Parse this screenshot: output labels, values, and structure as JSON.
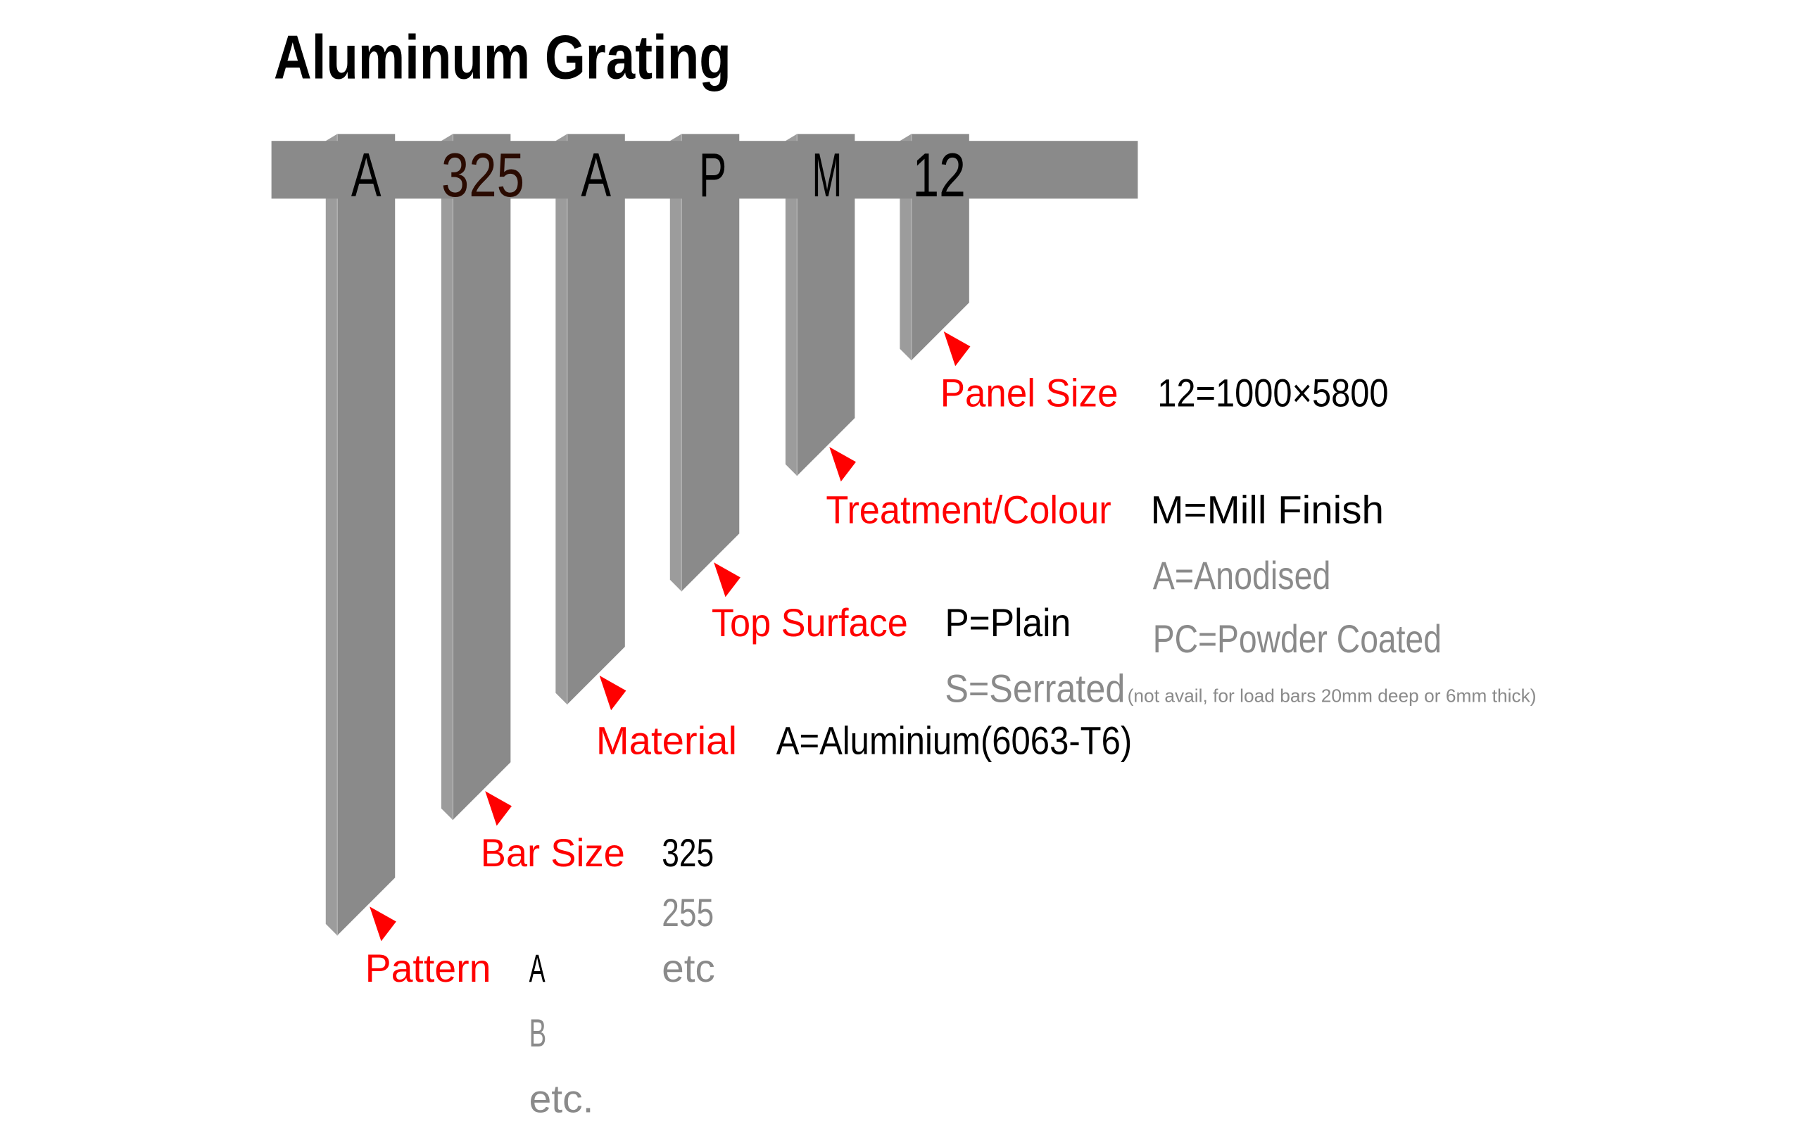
{
  "title": "Aluminum Grating",
  "colors": {
    "bar": "#8a8a8a",
    "bar_edge": "#9c9c9c",
    "label": "#ff0000",
    "value": "#000000",
    "alternative": "#8a8a8a",
    "code_size": "#2a0a00"
  },
  "code": [
    "A",
    "325",
    "A",
    "P",
    "M",
    "12"
  ],
  "fields": {
    "panel_size": {
      "label": "Panel Size",
      "values": [
        "12=1000×5800"
      ]
    },
    "treatment": {
      "label": "Treatment/Colour",
      "values": [
        "M=Mill Finish",
        "A=Anodised",
        "PC=Powder Coated"
      ]
    },
    "top_surface": {
      "label": "Top Surface",
      "values": [
        "P=Plain",
        "S=Serrated"
      ],
      "note": "(not avail, for load bars 20mm deep or 6mm thick)"
    },
    "material": {
      "label": "Material",
      "values": [
        "A=Aluminium(6063-T6)"
      ]
    },
    "bar_size": {
      "label": "Bar Size",
      "values": [
        "325",
        "255",
        "etc"
      ]
    },
    "pattern": {
      "label": "Pattern",
      "values": [
        "A",
        "B",
        "etc."
      ]
    }
  }
}
